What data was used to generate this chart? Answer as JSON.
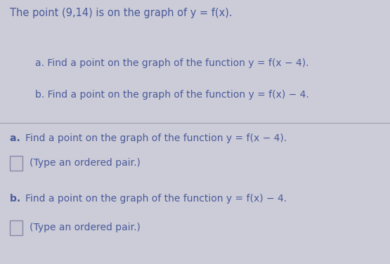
{
  "bg_color": "#ccccd8",
  "text_color": "#4a5a9a",
  "title_text": "The point (9,14) is on the graph of y = f(x).",
  "sub_a_text": "a. Find a point on the graph of the function y = f(x − 4).",
  "sub_b_text": "b. Find a point on the graph of the function y = f(x) − 4.",
  "section_a_full": "a. Find a point on the graph of the function y = f(x − 4).",
  "section_a_hint": "(Type an ordered pair.)",
  "section_b_full": "b. Find a point on the graph of the function y = f(x) − 4.",
  "section_b_hint": "(Type an ordered pair.)",
  "divider_color": "#a0a0b0",
  "font_size_title": 10.5,
  "font_size_body": 10,
  "font_size_hint": 10,
  "checkbox_color": "#8888aa",
  "checkbox_bg": "#c8c8d4"
}
